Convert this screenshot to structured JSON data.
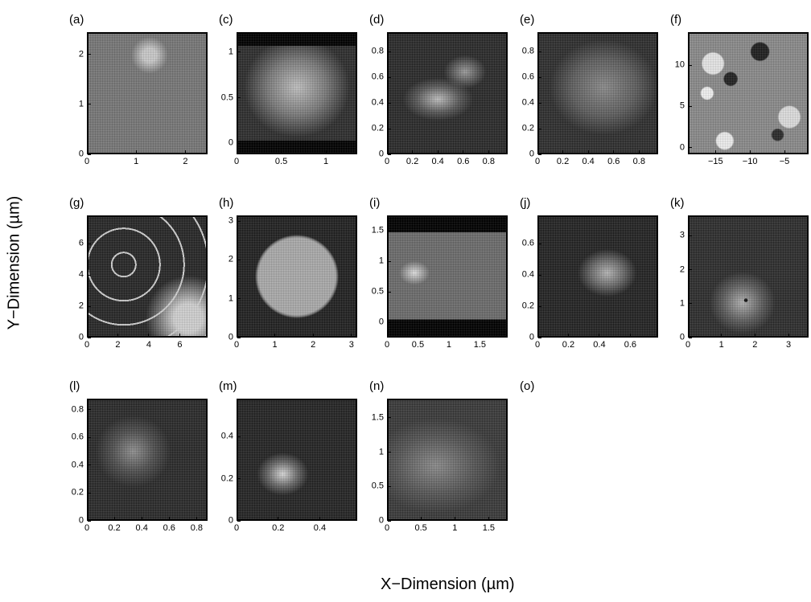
{
  "axis_titles": {
    "y": "Y−Dimension (µm)",
    "x": "X−Dimension (µm)"
  },
  "panels": [
    {
      "label": "(a)",
      "xticks": [
        "0",
        "1",
        "2"
      ],
      "yticks": [
        "0",
        "1",
        "2"
      ],
      "xrange": [
        0,
        2.45
      ],
      "yrange": [
        0,
        2.45
      ],
      "xt": [
        0,
        1,
        2
      ],
      "yt": [
        0,
        1,
        2
      ],
      "tone": "#777777",
      "blob": "a"
    },
    {
      "label": "(c)",
      "xticks": [
        "0",
        "0.5",
        "1"
      ],
      "yticks": [
        "0",
        "0.5",
        "1"
      ],
      "xrange": [
        0,
        1.35
      ],
      "yrange": [
        -0.12,
        1.22
      ],
      "xt": [
        0,
        0.5,
        1
      ],
      "yt": [
        0,
        0.5,
        1
      ],
      "tone": "#2e2e2e",
      "blob": "c"
    },
    {
      "label": "(d)",
      "xticks": [
        "0",
        "0.2",
        "0.4",
        "0.6",
        "0.8"
      ],
      "yticks": [
        "0",
        "0.2",
        "0.4",
        "0.6",
        "0.8"
      ],
      "xrange": [
        0,
        0.95
      ],
      "yrange": [
        0,
        0.95
      ],
      "xt": [
        0,
        0.2,
        0.4,
        0.6,
        0.8
      ],
      "yt": [
        0,
        0.2,
        0.4,
        0.6,
        0.8
      ],
      "tone": "#2b2b2b",
      "blob": "d"
    },
    {
      "label": "(e)",
      "xticks": [
        "0",
        "0.2",
        "0.4",
        "0.6",
        "0.8"
      ],
      "yticks": [
        "0",
        "0.2",
        "0.4",
        "0.6",
        "0.8"
      ],
      "xrange": [
        0,
        0.95
      ],
      "yrange": [
        0,
        0.95
      ],
      "xt": [
        0,
        0.2,
        0.4,
        0.6,
        0.8
      ],
      "yt": [
        0,
        0.2,
        0.4,
        0.6,
        0.8
      ],
      "tone": "#2f2f2f",
      "blob": "e"
    },
    {
      "label": "(f)",
      "xticks": [
        "−15",
        "−10",
        "−5"
      ],
      "yticks": [
        "0",
        "5",
        "10"
      ],
      "xrange": [
        -19,
        -1.5
      ],
      "yrange": [
        -0.8,
        14
      ],
      "xt": [
        -15,
        -10,
        -5
      ],
      "yt": [
        0,
        5,
        10
      ],
      "tone": "#8a8a8a",
      "blob": "f"
    },
    {
      "label": "(g)",
      "xticks": [
        "0",
        "2",
        "4",
        "6"
      ],
      "yticks": [
        "0",
        "2",
        "4",
        "6"
      ],
      "xrange": [
        0,
        7.8
      ],
      "yrange": [
        0,
        7.8
      ],
      "xt": [
        0,
        2,
        4,
        6
      ],
      "yt": [
        0,
        2,
        4,
        6
      ],
      "tone": "#2a2a2a",
      "blob": "g"
    },
    {
      "label": "(h)",
      "xticks": [
        "0",
        "1",
        "2",
        "3"
      ],
      "yticks": [
        "0",
        "1",
        "2",
        "3"
      ],
      "xrange": [
        0,
        3.15
      ],
      "yrange": [
        0,
        3.15
      ],
      "xt": [
        0,
        1,
        2,
        3
      ],
      "yt": [
        0,
        1,
        2,
        3
      ],
      "tone": "#222222",
      "blob": "h"
    },
    {
      "label": "(i)",
      "xticks": [
        "0",
        "0.5",
        "1",
        "1.5"
      ],
      "yticks": [
        "0",
        "0.5",
        "1",
        "1.5"
      ],
      "xrange": [
        0,
        1.95
      ],
      "yrange": [
        -0.25,
        1.75
      ],
      "xt": [
        0,
        0.5,
        1,
        1.5
      ],
      "yt": [
        0,
        0.5,
        1,
        1.5
      ],
      "tone": "#6c6c6c",
      "blob": "i"
    },
    {
      "label": "(j)",
      "xticks": [
        "0",
        "0.2",
        "0.4",
        "0.6"
      ],
      "yticks": [
        "0",
        "0.2",
        "0.4",
        "0.6"
      ],
      "xrange": [
        0,
        0.78
      ],
      "yrange": [
        0,
        0.78
      ],
      "xt": [
        0,
        0.2,
        0.4,
        0.6
      ],
      "yt": [
        0,
        0.2,
        0.4,
        0.6
      ],
      "tone": "#242424",
      "blob": "j"
    },
    {
      "label": "(k)",
      "xticks": [
        "0",
        "1",
        "2",
        "3"
      ],
      "yticks": [
        "0",
        "1",
        "2",
        "3"
      ],
      "xrange": [
        0,
        3.6
      ],
      "yrange": [
        0,
        3.6
      ],
      "xt": [
        0,
        1,
        2,
        3
      ],
      "yt": [
        0,
        1,
        2,
        3
      ],
      "tone": "#2e2e2e",
      "blob": "k"
    },
    {
      "label": "(l)",
      "xticks": [
        "0",
        "0.2",
        "0.4",
        "0.6",
        "0.8"
      ],
      "yticks": [
        "0",
        "0.2",
        "0.4",
        "0.6",
        "0.8"
      ],
      "xrange": [
        0,
        0.88
      ],
      "yrange": [
        0,
        0.88
      ],
      "xt": [
        0,
        0.2,
        0.4,
        0.6,
        0.8
      ],
      "yt": [
        0,
        0.2,
        0.4,
        0.6,
        0.8
      ],
      "tone": "#2b2b2b",
      "blob": "l"
    },
    {
      "label": "(m)",
      "xticks": [
        "0",
        "0.2",
        "0.4"
      ],
      "yticks": [
        "0",
        "0.2",
        "0.4"
      ],
      "xrange": [
        0,
        0.58
      ],
      "yrange": [
        0,
        0.58
      ],
      "xt": [
        0,
        0.2,
        0.4
      ],
      "yt": [
        0,
        0.2,
        0.4
      ],
      "tone": "#252525",
      "blob": "m"
    },
    {
      "label": "(n)",
      "xticks": [
        "0",
        "0.5",
        "1",
        "1.5"
      ],
      "yticks": [
        "0",
        "0.5",
        "1",
        "1.5"
      ],
      "xrange": [
        0,
        1.78
      ],
      "yrange": [
        0,
        1.78
      ],
      "xt": [
        0,
        0.5,
        1,
        1.5
      ],
      "yt": [
        0,
        0.5,
        1,
        1.5
      ],
      "tone": "#3a3a3a",
      "blob": "n"
    },
    {
      "label": "(o)",
      "empty": true
    }
  ]
}
